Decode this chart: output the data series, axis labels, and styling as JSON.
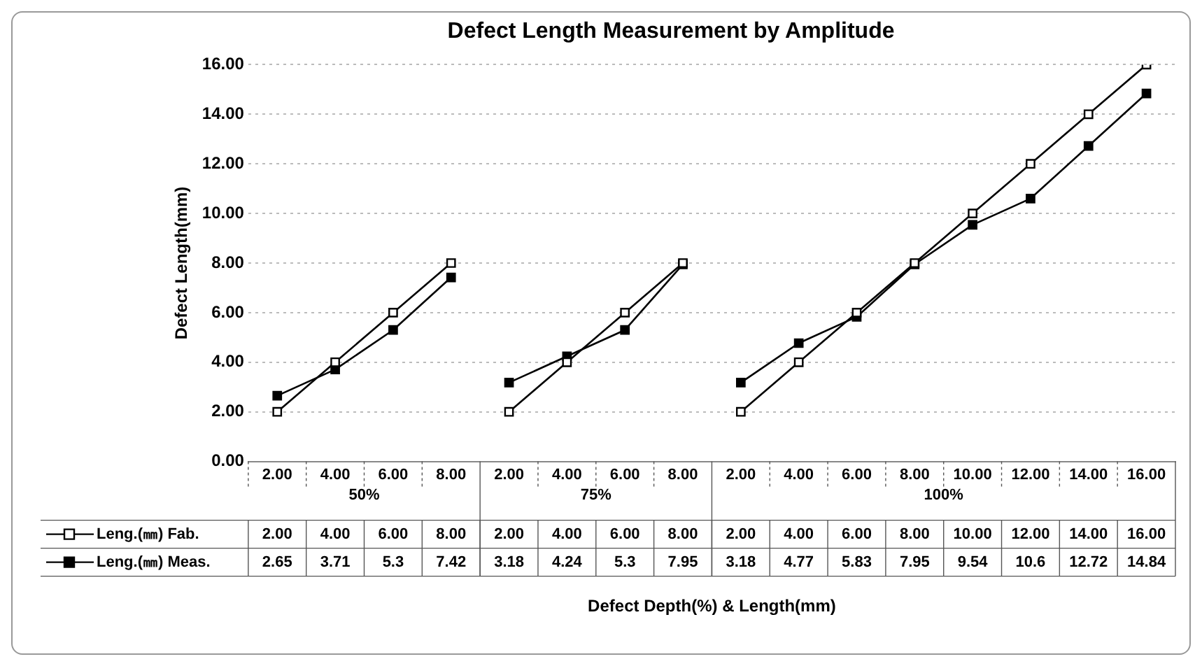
{
  "chart_data": {
    "type": "line",
    "title": "Defect Length Measurement by Amplitude",
    "xlabel": "Defect Depth(%) & Length(mm)",
    "ylabel": "Defect Length(mm)",
    "categories": [
      "2.00",
      "4.00",
      "6.00",
      "8.00",
      "2.00",
      "4.00",
      "6.00",
      "8.00",
      "2.00",
      "4.00",
      "6.00",
      "8.00",
      "10.00",
      "12.00",
      "14.00",
      "16.00"
    ],
    "series": [
      {
        "name": "Leng.(㎜) Fab.",
        "color": "#000000",
        "values": [
          2,
          4,
          6,
          8,
          2,
          4,
          6,
          8,
          2,
          4,
          6,
          8,
          10,
          12,
          14,
          16
        ],
        "value_labels": [
          "2.00",
          "4.00",
          "6.00",
          "8.00",
          "2.00",
          "4.00",
          "6.00",
          "8.00",
          "2.00",
          "4.00",
          "6.00",
          "8.00",
          "10.00",
          "12.00",
          "14.00",
          "16.00"
        ]
      },
      {
        "name": "Leng.(㎜) Meas.",
        "color": "#000000",
        "values": [
          2.65,
          3.71,
          5.3,
          7.42,
          3.18,
          4.24,
          5.3,
          7.95,
          3.18,
          4.77,
          5.83,
          7.95,
          9.54,
          10.6,
          12.72,
          14.84
        ],
        "value_labels": [
          "2.65",
          "3.71",
          "5.3",
          "7.42",
          "3.18",
          "4.24",
          "5.3",
          "7.95",
          "3.18",
          "4.77",
          "5.83",
          "7.95",
          "9.54",
          "10.6",
          "12.72",
          "14.84"
        ]
      }
    ],
    "annotations": [
      "50%",
      "75%",
      "100%"
    ],
    "ylim": [
      0,
      16
    ],
    "yticks": [
      {
        "value": 0,
        "label": "0.00"
      },
      {
        "value": 2,
        "label": "2.00"
      },
      {
        "value": 4,
        "label": "4.00"
      },
      {
        "value": 6,
        "label": "6.00"
      },
      {
        "value": 8,
        "label": "8.00"
      },
      {
        "value": 10,
        "label": "10.00"
      },
      {
        "value": 12,
        "label": "12.00"
      },
      {
        "value": 14,
        "label": "14.00"
      },
      {
        "value": 16,
        "label": "16.00"
      }
    ],
    "grid": "y",
    "legend": "bottom",
    "marker": "square",
    "line_style": "solid"
  }
}
